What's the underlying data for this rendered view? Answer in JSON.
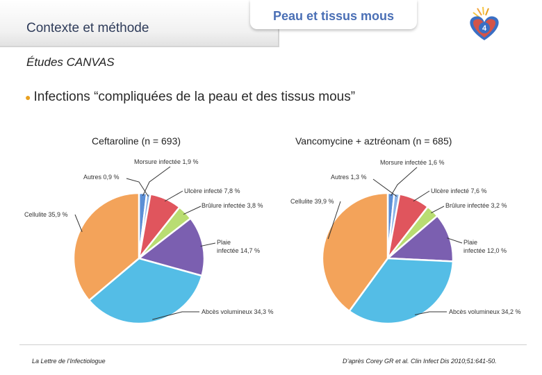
{
  "header": {
    "section": "Contexte et méthode",
    "tab_title": "Peau et tissus mous",
    "page_number": "4"
  },
  "subtitle": "Études CANVAS",
  "bullet": "Infections “compliquées de la peau et des tissus mous”",
  "colors": {
    "autres": "#8ab3e8",
    "ulcere": "#e0555d",
    "brulure": "#b9dd72",
    "plaie": "#7b5fb0",
    "abces": "#54bde6",
    "cellulite": "#f3a35a",
    "accent": "#4a6fb5"
  },
  "chart_data": [
    {
      "type": "pie",
      "title": "Ceftaroline (n = 693)",
      "slices": [
        {
          "key": "morsure",
          "label": "Morsure infectée 1,9 %",
          "value": 1.9,
          "color": "#5c8fd6"
        },
        {
          "key": "autres",
          "label": "Autres 0,9 %",
          "value": 0.9,
          "color": "#8ab3e8"
        },
        {
          "key": "ulcere",
          "label": "Ulcère infecté 7,8 %",
          "value": 7.8,
          "color": "#e0555d"
        },
        {
          "key": "brulure",
          "label": "Brûlure infectée 3,8 %",
          "value": 3.8,
          "color": "#b9dd72"
        },
        {
          "key": "plaie",
          "label_lines": [
            "Plaie",
            "infectée 14,7 %"
          ],
          "value": 14.7,
          "color": "#7b5fb0"
        },
        {
          "key": "abces",
          "label": "Abcès volumineux 34,3 %",
          "value": 34.3,
          "color": "#54bde6"
        },
        {
          "key": "cellulite",
          "label": "Cellulite 35,9 %",
          "value": 35.9,
          "color": "#f3a35a"
        }
      ]
    },
    {
      "type": "pie",
      "title": "Vancomycine + aztréonam (n = 685)",
      "slices": [
        {
          "key": "morsure",
          "label": "Morsure infectée 1,6 %",
          "value": 1.6,
          "color": "#5c8fd6"
        },
        {
          "key": "autres",
          "label": "Autres 1,3 %",
          "value": 1.3,
          "color": "#8ab3e8"
        },
        {
          "key": "ulcere",
          "label": "Ulcère infecté 7,6 %",
          "value": 7.6,
          "color": "#e0555d"
        },
        {
          "key": "brulure",
          "label": "Brûlure infectée 3,2 %",
          "value": 3.2,
          "color": "#b9dd72"
        },
        {
          "key": "plaie",
          "label_lines": [
            "Plaie",
            "infectée 12,0 %"
          ],
          "value": 12.0,
          "color": "#7b5fb0"
        },
        {
          "key": "abces",
          "label": "Abcès volumineux 34,2 %",
          "value": 34.2,
          "color": "#54bde6"
        },
        {
          "key": "cellulite",
          "label": "Cellulite 39,9 %",
          "value": 39.9,
          "color": "#f3a35a"
        }
      ]
    }
  ],
  "footer": {
    "journal": "La Lettre de l’Infectiologue",
    "source": "D’après Corey GR et al. Clin Infect Dis 2010;51:641-50."
  }
}
